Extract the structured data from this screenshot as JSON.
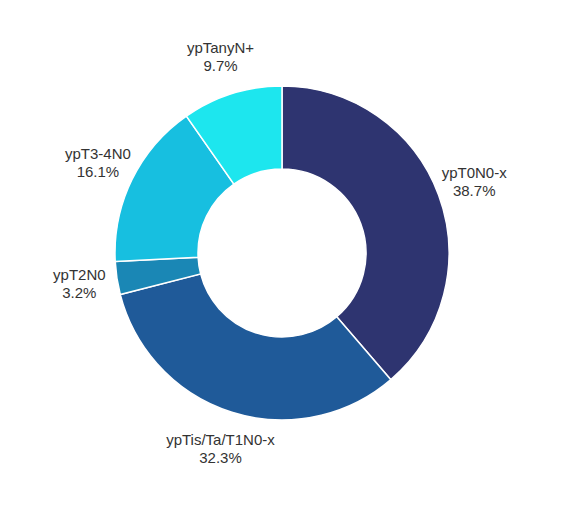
{
  "chart_data": {
    "type": "donut",
    "categories": [
      "ypT0N0-x",
      "ypTis/Ta/T1N0-x",
      "ypT2N0",
      "ypT3-4N0",
      "ypTanyN+"
    ],
    "values": [
      38.7,
      32.3,
      3.2,
      16.1,
      9.7
    ],
    "value_labels": [
      "38.7%",
      "32.3%",
      "3.2%",
      "16.1%",
      "9.7%"
    ],
    "colors": [
      "#2e3470",
      "#1f5a99",
      "#1a87b5",
      "#17bfe0",
      "#1de6ee"
    ],
    "data_labels": true
  }
}
